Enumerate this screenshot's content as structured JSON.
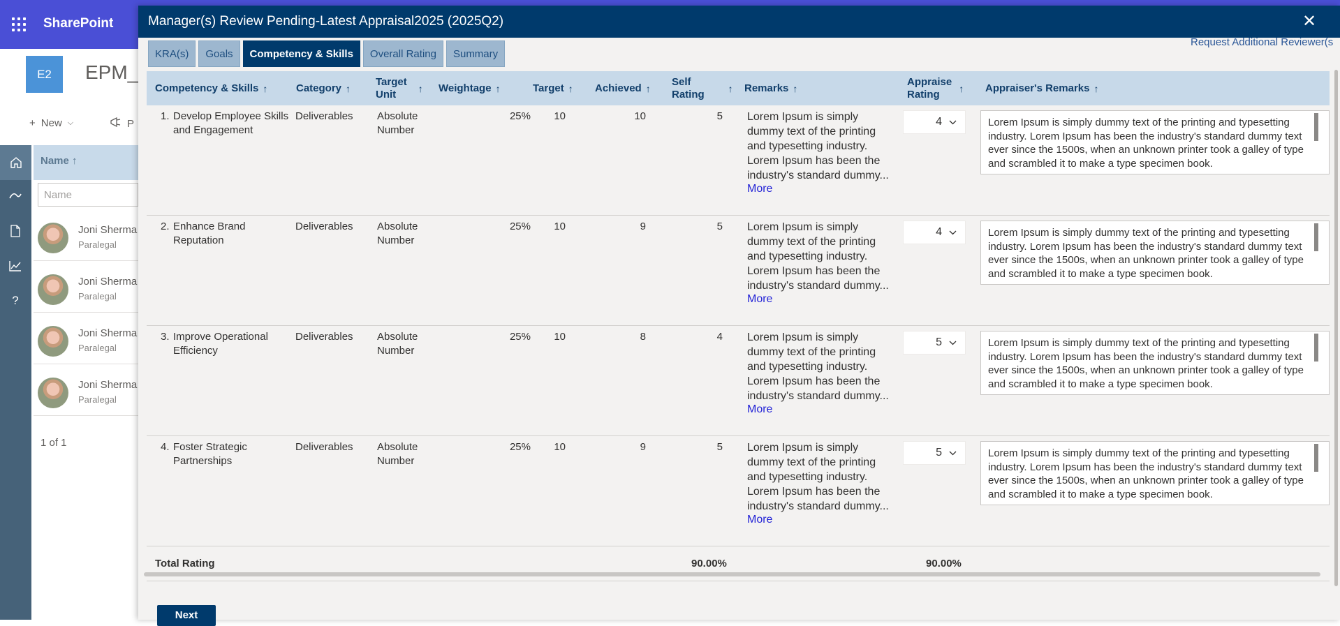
{
  "app": {
    "brand": "SharePoint",
    "site_logo": "E2",
    "site_title": "EPM_A"
  },
  "commands": {
    "new_label": "New",
    "second_label": "P"
  },
  "list": {
    "column_name": "Name ↑",
    "filter_placeholder": "Name",
    "rows": [
      {
        "name": "Joni Sherma",
        "role": "Paralegal"
      },
      {
        "name": "Joni Sherma",
        "role": "Paralegal"
      },
      {
        "name": "Joni Sherma",
        "role": "Paralegal"
      },
      {
        "name": "Joni Sherma",
        "role": "Paralegal"
      }
    ],
    "pager": "1 of 1"
  },
  "modal": {
    "title": "Manager(s) Review Pending-Latest Appraisal2025 (2025Q2)",
    "close_glyph": "✕",
    "request_link": "Request Additional Reviewer(s",
    "tabs": [
      {
        "label": "KRA(s)",
        "active": false
      },
      {
        "label": "Goals",
        "active": false
      },
      {
        "label": "Competency & Skills",
        "active": true
      },
      {
        "label": "Overall Rating",
        "active": false
      },
      {
        "label": "Summary",
        "active": false
      }
    ],
    "columns": {
      "competency": "Competency & Skills",
      "category": "Category",
      "target_unit_1": "Target",
      "target_unit_2": "Unit",
      "weightage": "Weightage",
      "target": "Target",
      "achieved": "Achieved",
      "self_rating_1": "Self",
      "self_rating_2": "Rating",
      "remarks": "Remarks",
      "appraiser_rating_1": "Appraise",
      "appraiser_rating_2": "Rating",
      "appraiser_remarks": "Appraiser's Remarks",
      "sort_glyph": "↑"
    },
    "rows": [
      {
        "index": "1.",
        "competency": "Develop Employee Skills and Engagement",
        "category": "Deliverables",
        "target_unit": "Absolute Number",
        "weightage": "25%",
        "target": "10",
        "achieved": "10",
        "self_rating": "5",
        "remarks": "Lorem Ipsum is simply dummy text of the printing and typesetting industry. Lorem Ipsum has been the industry's standard dummy...",
        "more": "More",
        "appraiser_rating": "4",
        "appraiser_remarks": "Lorem Ipsum is simply dummy text of the printing and typesetting industry. Lorem Ipsum has been the industry's standard dummy text ever since the 1500s, when an unknown printer took a galley of type and scrambled it to make a type specimen book."
      },
      {
        "index": "2.",
        "competency": "Enhance Brand Reputation",
        "category": "Deliverables",
        "target_unit": "Absolute Number",
        "weightage": "25%",
        "target": "10",
        "achieved": "9",
        "self_rating": "5",
        "remarks": "Lorem Ipsum is simply dummy text of the printing and typesetting industry. Lorem Ipsum has been the industry's standard dummy...",
        "more": "More",
        "appraiser_rating": "4",
        "appraiser_remarks": "Lorem Ipsum is simply dummy text of the printing and typesetting industry. Lorem Ipsum has been the industry's standard dummy text ever since the 1500s, when an unknown printer took a galley of type and scrambled it to make a type specimen book."
      },
      {
        "index": "3.",
        "competency": "Improve Operational Efficiency",
        "category": "Deliverables",
        "target_unit": "Absolute Number",
        "weightage": "25%",
        "target": "10",
        "achieved": "8",
        "self_rating": "4",
        "remarks": "Lorem Ipsum is simply dummy text of the printing and typesetting industry. Lorem Ipsum has been the industry's standard dummy...",
        "more": "More",
        "appraiser_rating": "5",
        "appraiser_remarks": "Lorem Ipsum is simply dummy text of the printing and typesetting industry. Lorem Ipsum has been the industry's standard dummy text ever since the 1500s, when an unknown printer took a galley of type and scrambled it to make a type specimen book."
      },
      {
        "index": "4.",
        "competency": "Foster Strategic Partnerships",
        "category": "Deliverables",
        "target_unit": "Absolute Number",
        "weightage": "25%",
        "target": "10",
        "achieved": "9",
        "self_rating": "5",
        "remarks": "Lorem Ipsum is simply dummy text of the printing and typesetting industry. Lorem Ipsum has been the industry's standard dummy...",
        "more": "More",
        "appraiser_rating": "5",
        "appraiser_remarks": "Lorem Ipsum is simply dummy text of the printing and typesetting industry. Lorem Ipsum has been the industry's standard dummy text ever since the 1500s, when an unknown printer took a galley of type and scrambled it to make a type specimen book."
      }
    ],
    "total": {
      "label": "Total Rating",
      "self": "90.00%",
      "appraiser": "90.00%"
    },
    "next_label": "Next"
  },
  "colors": {
    "header": "#003a6c",
    "tab": "#9db7cf",
    "grid_header": "#c7d9e9",
    "link": "#2323d6"
  }
}
